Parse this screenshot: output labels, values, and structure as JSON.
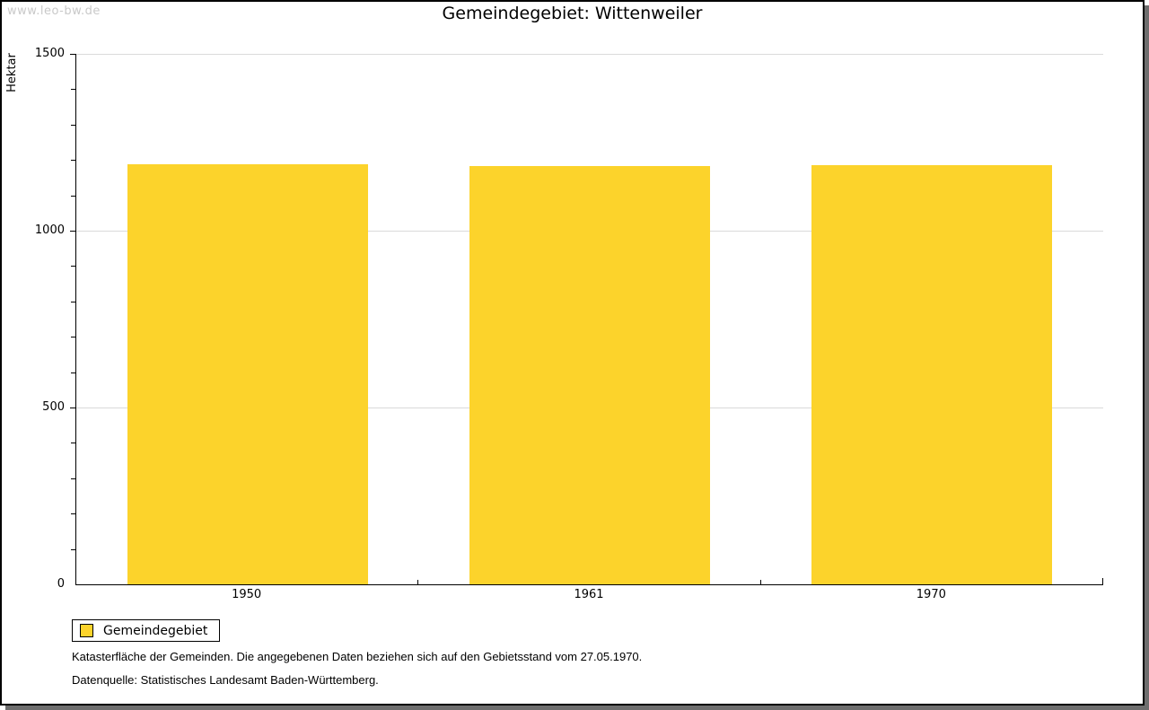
{
  "watermark": "www.leo-bw.de",
  "title": "Gemeindegebiet: Wittenweiler",
  "legend": {
    "label": "Gemeindegebiet",
    "swatch_color": "#FCD32B"
  },
  "notes": {
    "footnote": "Katasterfläche der Gemeinden. Die angegebenen Daten beziehen sich auf den Gebietsstand vom 27.05.1970.",
    "source": "Datenquelle: Statistisches Landesamt Baden-Württemberg."
  },
  "chart_data": {
    "type": "bar",
    "title": "Gemeindegebiet: Wittenweiler",
    "categories": [
      "1950",
      "1961",
      "1970"
    ],
    "series": [
      {
        "name": "Gemeindegebiet",
        "values": [
          1188,
          1183,
          1185
        ]
      }
    ],
    "xlabel": "",
    "ylabel": "Hektar",
    "ylim": [
      0,
      1500
    ],
    "ytick_major": 500,
    "ytick_minor": 100,
    "grid": "horizontal-major",
    "bar_color": "#FCD32B",
    "grid_color": "#DADADA",
    "legend_position": "bottom-left"
  }
}
